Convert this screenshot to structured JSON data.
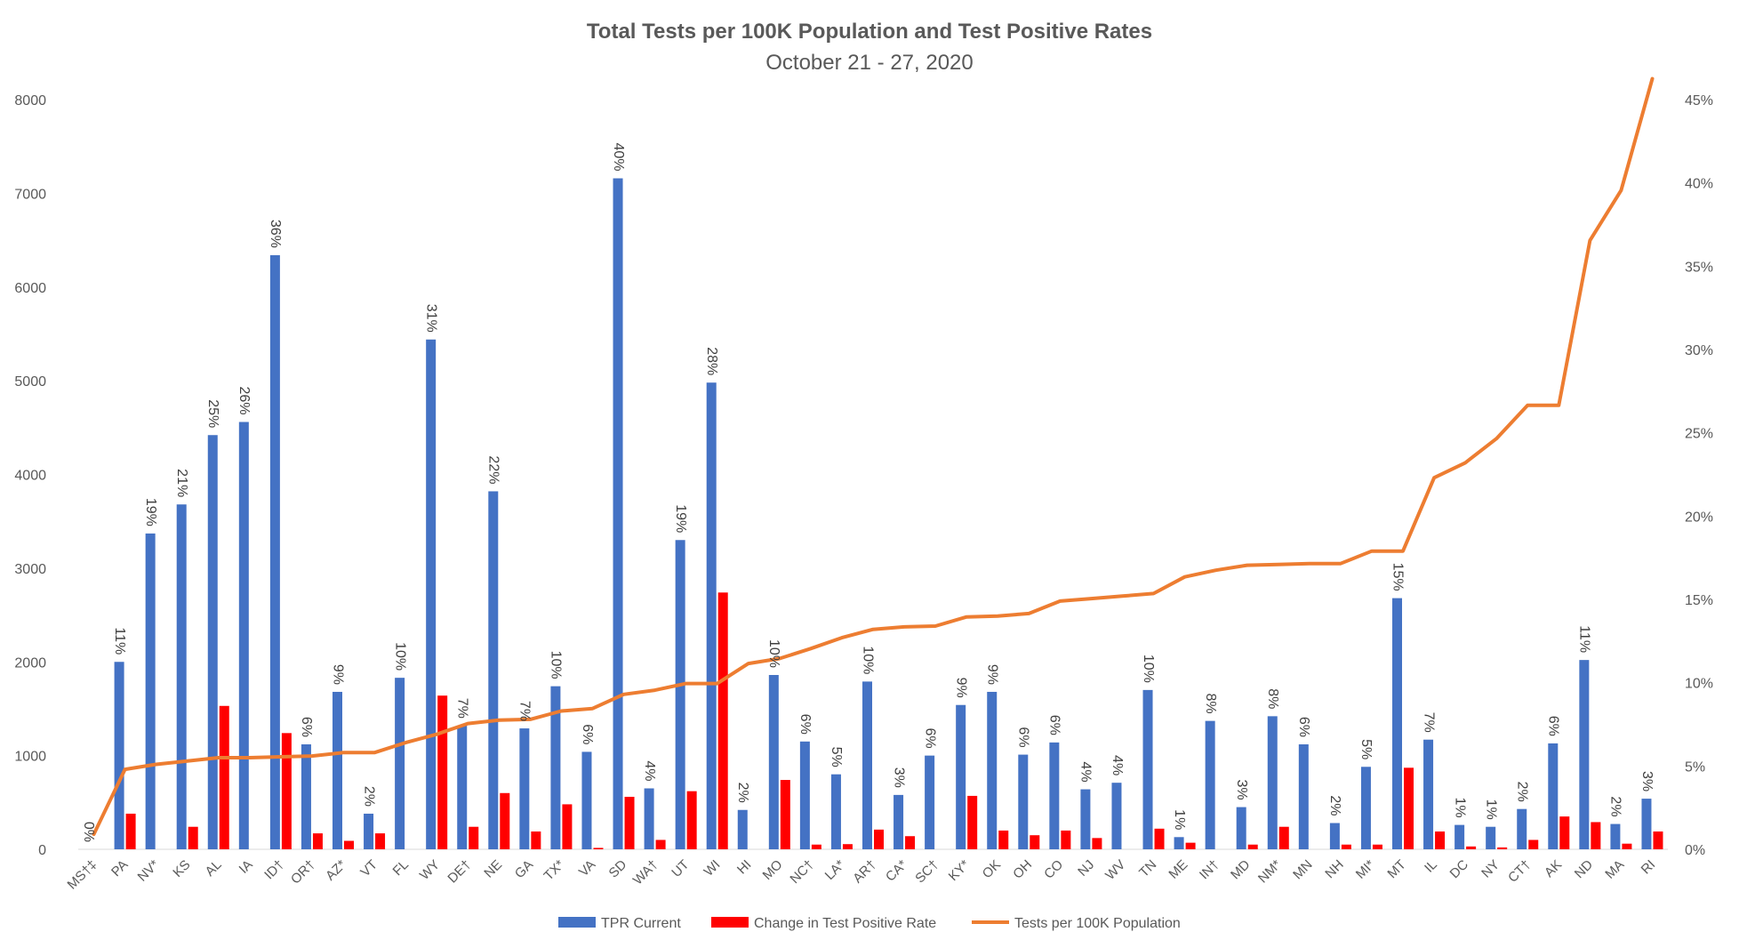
{
  "chart_data": {
    "type": "bar",
    "title": "Total Tests per 100K Population and Test Positive Rates",
    "subtitle": "October 21 - 27, 2020",
    "categories": [
      "MS†‡",
      "PA",
      "NV*",
      "KS",
      "AL",
      "IA",
      "ID†",
      "OR†",
      "AZ*",
      "VT",
      "FL",
      "WY",
      "DE†",
      "NE",
      "GA",
      "TX*",
      "VA",
      "SD",
      "WA†",
      "UT",
      "WI",
      "HI",
      "MO",
      "NC†",
      "LA*",
      "AR†",
      "CA*",
      "SC†",
      "KY*",
      "OK",
      "OH",
      "CO",
      "NJ",
      "WV",
      "TN",
      "ME",
      "IN†",
      "MD",
      "NM*",
      "MN",
      "NH",
      "MI*",
      "MT",
      "IL",
      "DC",
      "NY",
      "CT†",
      "AK",
      "ND",
      "MA",
      "RI"
    ],
    "series": [
      {
        "name": "TPR Current",
        "axis": "left",
        "color": "#4472C4",
        "values": [
          0,
          2000,
          3370,
          3680,
          4420,
          4560,
          6340,
          1120,
          1680,
          380,
          1830,
          5440,
          1320,
          3820,
          1290,
          1740,
          1040,
          7160,
          650,
          3300,
          4980,
          420,
          1860,
          1150,
          800,
          1790,
          580,
          1000,
          1540,
          1680,
          1010,
          1140,
          640,
          710,
          1700,
          130,
          1370,
          450,
          1420,
          1120,
          280,
          880,
          2680,
          1170,
          260,
          240,
          430,
          1130,
          2020,
          270,
          540
        ],
        "data_labels": [
          "0%",
          "11%",
          "19%",
          "21%",
          "25%",
          "26%",
          "36%",
          "6%",
          "9%",
          "2%",
          "10%",
          "31%",
          "7%",
          "22%",
          "7%",
          "10%",
          "6%",
          "40%",
          "4%",
          "19%",
          "28%",
          "2%",
          "10%",
          "6%",
          "5%",
          "10%",
          "3%",
          "6%",
          "9%",
          "9%",
          "6%",
          "6%",
          "4%",
          "4%",
          "10%",
          "1%",
          "8%",
          "3%",
          "8%",
          "6%",
          "2%",
          "5%",
          "15%",
          "7%",
          "1%",
          "1%",
          "2%",
          "6%",
          "11%",
          "2%",
          "3%"
        ]
      },
      {
        "name": "Change in Test Positive Rate",
        "axis": "left",
        "color": "#FF0000",
        "values": [
          0,
          380,
          0,
          240,
          1530,
          0,
          1240,
          170,
          90,
          170,
          0,
          1640,
          240,
          600,
          190,
          480,
          15,
          560,
          100,
          620,
          2740,
          0,
          740,
          50,
          55,
          210,
          140,
          0,
          570,
          200,
          150,
          200,
          120,
          0,
          220,
          70,
          0,
          50,
          240,
          0,
          50,
          50,
          870,
          190,
          30,
          20,
          100,
          350,
          290,
          60,
          190
        ]
      },
      {
        "name": "Tests per 100K Population",
        "axis": "right",
        "color": "#ED7D31",
        "type": "line",
        "values": [
          0.009,
          0.048,
          0.051,
          0.053,
          0.055,
          0.055,
          0.0555,
          0.056,
          0.058,
          0.058,
          0.064,
          0.069,
          0.0755,
          0.0775,
          0.078,
          0.083,
          0.0845,
          0.093,
          0.0955,
          0.0995,
          0.0995,
          0.1115,
          0.1145,
          0.1205,
          0.127,
          0.132,
          0.1335,
          0.134,
          0.1395,
          0.14,
          0.1415,
          0.149,
          0.1505,
          0.152,
          0.1535,
          0.1635,
          0.1675,
          0.1705,
          0.171,
          0.1715,
          0.1715,
          0.179,
          0.179,
          0.223,
          0.232,
          0.2465,
          0.2665,
          0.2665,
          0.3655,
          0.3955,
          0.4625
        ]
      }
    ],
    "y_left": {
      "min": 0,
      "max": 8000,
      "ticks": [
        0,
        1000,
        2000,
        3000,
        4000,
        5000,
        6000,
        7000,
        8000
      ]
    },
    "y_right": {
      "min": 0,
      "max": 0.45,
      "ticks": [
        "0%",
        "5%",
        "10%",
        "15%",
        "20%",
        "25%",
        "30%",
        "35%",
        "40%",
        "45%"
      ]
    },
    "grid": false,
    "legend_position": "bottom"
  }
}
